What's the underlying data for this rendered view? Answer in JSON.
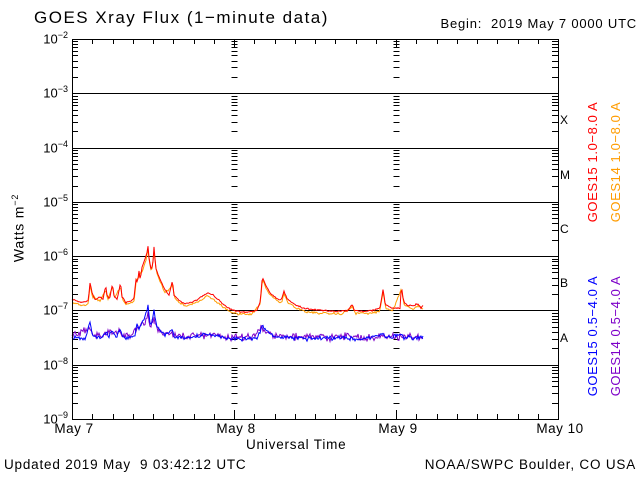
{
  "header": {
    "title": "GOES Xray Flux (1−minute data)",
    "begin_label": "Begin:  2019 May 7 0000 UTC"
  },
  "footer": {
    "updated": "Updated 2019 May  9 03:42:12 UTC",
    "source": "NOAA/SWPC Boulder, CO USA"
  },
  "colors": {
    "goes15_long": "#ff0000",
    "goes14_long": "#ff9c00",
    "goes15_short": "#0000ff",
    "goes14_short": "#7d00c8",
    "axis": "#000000",
    "background": "#ffffff"
  },
  "right_legend": [
    {
      "label": "GOES15 1.0−8.0 A",
      "color": "#ff0000",
      "column": 0,
      "row": 0
    },
    {
      "label": "GOES14 1.0−8.0 A",
      "color": "#ff9c00",
      "column": 1,
      "row": 0
    },
    {
      "label": "GOES15 0.5−4.0 A",
      "color": "#0000ff",
      "column": 0,
      "row": 1
    },
    {
      "label": "GOES14 0.5−4.0 A",
      "color": "#7d00c8",
      "column": 1,
      "row": 1
    }
  ],
  "chart_data": {
    "type": "line",
    "title": "GOES Xray Flux (1−minute data)",
    "xlabel": "Universal Time",
    "ylabel": "Watts m−2",
    "ylabel_base": "Watts m",
    "ylabel_exp": "−2",
    "x_axis": {
      "start": "2019 May 7 0000 UTC",
      "hours_span": 72,
      "tick_labels": [
        "May 7",
        "May 8",
        "May 9",
        "May 10"
      ],
      "tick_label_hours": [
        0,
        24,
        48,
        72
      ],
      "minor_tick_hours": 3,
      "dashed_day_lines_hours": [
        24,
        48
      ]
    },
    "y_axis": {
      "scale": "log",
      "min": 1e-09,
      "max": 0.01,
      "decade_exponents": [
        -2,
        -3,
        -4,
        -5,
        -6,
        -7,
        -8,
        -9
      ],
      "solid_gridline_exponents": [
        -3,
        -4,
        -5,
        -6,
        -7,
        -8
      ]
    },
    "flare_class_bands": [
      {
        "label": "X",
        "center_exponent": -3.5
      },
      {
        "label": "M",
        "center_exponent": -4.5
      },
      {
        "label": "C",
        "center_exponent": -5.5
      },
      {
        "label": "B",
        "center_exponent": -6.5
      },
      {
        "label": "A",
        "center_exponent": -7.5
      }
    ],
    "series": [
      {
        "name": "GOES14 0.5-4.0 A",
        "color": "#7d00c8",
        "noise": 0.065,
        "points": [
          [
            0,
            3.3e-08
          ],
          [
            2.7,
            4.6e-08
          ],
          [
            3.2,
            3.4e-08
          ],
          [
            5.0,
            3.8e-08
          ],
          [
            6.0,
            4e-08
          ],
          [
            7.2,
            4e-08
          ],
          [
            8.5,
            3.2e-08
          ],
          [
            9.6,
            4.8e-08
          ],
          [
            10.8,
            6e-08
          ],
          [
            11.25,
            8.5e-08
          ],
          [
            11.6,
            5e-08
          ],
          [
            12.15,
            7.5e-08
          ],
          [
            12.6,
            4.6e-08
          ],
          [
            13.5,
            3.8e-08
          ],
          [
            15.0,
            3.6e-08
          ],
          [
            17.0,
            3.3e-08
          ],
          [
            20.1,
            3.6e-08
          ],
          [
            23.0,
            3.3e-08
          ],
          [
            26.0,
            3.2e-08
          ],
          [
            28.2,
            4.6e-08
          ],
          [
            29.5,
            3.6e-08
          ],
          [
            32.0,
            3.3e-08
          ],
          [
            36.0,
            3.2e-08
          ],
          [
            40.0,
            3.3e-08
          ],
          [
            44.0,
            3.2e-08
          ],
          [
            48.0,
            3.3e-08
          ],
          [
            52.0,
            3.2e-08
          ]
        ]
      },
      {
        "name": "GOES15 0.5-4.0 A",
        "color": "#0000ff",
        "noise": 0.04,
        "points": [
          [
            0,
            3.2e-08
          ],
          [
            2.0,
            3.1e-08
          ],
          [
            2.7,
            6e-08
          ],
          [
            3.0,
            3.4e-08
          ],
          [
            4.5,
            3.2e-08
          ],
          [
            5.0,
            4.2e-08
          ],
          [
            5.4,
            3.3e-08
          ],
          [
            6.0,
            4.5e-08
          ],
          [
            6.4,
            3.2e-08
          ],
          [
            7.2,
            4.6e-08
          ],
          [
            7.6,
            3.2e-08
          ],
          [
            8.5,
            3e-08
          ],
          [
            9.4,
            3.6e-08
          ],
          [
            9.6,
            6e-08
          ],
          [
            9.9,
            4.4e-08
          ],
          [
            10.4,
            6.5e-08
          ],
          [
            10.8,
            8e-08
          ],
          [
            11.05,
            9e-08
          ],
          [
            11.25,
            1.25e-07
          ],
          [
            11.5,
            6e-08
          ],
          [
            11.8,
            5.2e-08
          ],
          [
            12.15,
            1e-07
          ],
          [
            12.5,
            5.5e-08
          ],
          [
            13.0,
            4.4e-08
          ],
          [
            13.7,
            3.6e-08
          ],
          [
            14.9,
            4.4e-08
          ],
          [
            15.2,
            3.3e-08
          ],
          [
            16.5,
            3.1e-08
          ],
          [
            19.0,
            3.3e-08
          ],
          [
            20.1,
            3.6e-08
          ],
          [
            21.5,
            3.3e-08
          ],
          [
            23.0,
            3.1e-08
          ],
          [
            25.0,
            3e-08
          ],
          [
            27.5,
            3.1e-08
          ],
          [
            28.2,
            5.2e-08
          ],
          [
            28.8,
            4.2e-08
          ],
          [
            29.5,
            3.6e-08
          ],
          [
            30.5,
            3.2e-08
          ],
          [
            33.0,
            3.1e-08
          ],
          [
            36.0,
            3e-08
          ],
          [
            40.0,
            3.1e-08
          ],
          [
            43.0,
            3e-08
          ],
          [
            46.1,
            3.6e-08
          ],
          [
            46.5,
            3.1e-08
          ],
          [
            48.8,
            3.8e-08
          ],
          [
            49.2,
            3.1e-08
          ],
          [
            51.0,
            3.2e-08
          ],
          [
            52.0,
            3.1e-08
          ]
        ]
      },
      {
        "name": "GOES14 1.0-8.0 A",
        "color": "#ff9c00",
        "noise": 0.02,
        "points": [
          [
            0,
            1.4e-07
          ],
          [
            1.5,
            1.25e-07
          ],
          [
            2.4,
            1.3e-07
          ],
          [
            2.7,
            3e-07
          ],
          [
            3.0,
            1.8e-07
          ],
          [
            4.2,
            1.5e-07
          ],
          [
            5.0,
            2.4e-07
          ],
          [
            5.3,
            1.6e-07
          ],
          [
            6.0,
            2.7e-07
          ],
          [
            6.3,
            1.7e-07
          ],
          [
            7.2,
            2.7e-07
          ],
          [
            7.5,
            1.6e-07
          ],
          [
            8.0,
            1.25e-07
          ],
          [
            9.2,
            1.5e-07
          ],
          [
            9.5,
            3.4e-07
          ],
          [
            10.0,
            4.6e-07
          ],
          [
            10.5,
            5.6e-07
          ],
          [
            11.0,
            9e-07
          ],
          [
            11.25,
            1.35e-06
          ],
          [
            11.5,
            7e-07
          ],
          [
            11.8,
            5.4e-07
          ],
          [
            12.15,
            1.2e-06
          ],
          [
            12.5,
            5.2e-07
          ],
          [
            13.0,
            3.6e-07
          ],
          [
            13.8,
            2.1e-07
          ],
          [
            14.9,
            3e-07
          ],
          [
            15.2,
            1.7e-07
          ],
          [
            16.0,
            1.35e-07
          ],
          [
            17.0,
            1.2e-07
          ],
          [
            18.6,
            1.4e-07
          ],
          [
            20.1,
            1.85e-07
          ],
          [
            21.6,
            1.4e-07
          ],
          [
            23.2,
            9.8e-08
          ],
          [
            24.5,
            8.6e-08
          ],
          [
            26.5,
            8.4e-08
          ],
          [
            27.9,
            1.3e-07
          ],
          [
            28.2,
            3.7e-07
          ],
          [
            28.9,
            2.3e-07
          ],
          [
            29.8,
            1.7e-07
          ],
          [
            31.0,
            1.35e-07
          ],
          [
            31.4,
            2e-07
          ],
          [
            32.0,
            1.4e-07
          ],
          [
            33.2,
            1.1e-07
          ],
          [
            35.0,
            9.3e-08
          ],
          [
            37.5,
            8.8e-08
          ],
          [
            40.0,
            8.6e-08
          ],
          [
            41.5,
            1.15e-07
          ],
          [
            42.0,
            9e-08
          ],
          [
            44.0,
            8.8e-08
          ],
          [
            45.6,
            9.6e-08
          ],
          [
            46.1,
            2.2e-07
          ],
          [
            46.5,
            1.1e-07
          ],
          [
            47.5,
            9.6e-08
          ],
          [
            48.8,
            2.5e-07
          ],
          [
            49.2,
            1.3e-07
          ],
          [
            50.5,
            1.05e-07
          ],
          [
            51.2,
            1.2e-07
          ],
          [
            52.0,
            1.1e-07
          ]
        ]
      },
      {
        "name": "GOES15 1.0-8.0 A",
        "color": "#ff0000",
        "noise": 0.013,
        "points": [
          [
            0,
            1.6e-07
          ],
          [
            1.5,
            1.4e-07
          ],
          [
            2.4,
            1.5e-07
          ],
          [
            2.7,
            3.6e-07
          ],
          [
            2.9,
            2.2e-07
          ],
          [
            3.4,
            1.6e-07
          ],
          [
            4.2,
            1.8e-07
          ],
          [
            4.6,
            1.6e-07
          ],
          [
            5.0,
            2.9e-07
          ],
          [
            5.2,
            1.8e-07
          ],
          [
            5.6,
            1.7e-07
          ],
          [
            6.0,
            3.2e-07
          ],
          [
            6.2,
            1.9e-07
          ],
          [
            6.7,
            1.6e-07
          ],
          [
            7.2,
            3.2e-07
          ],
          [
            7.4,
            1.8e-07
          ],
          [
            8.0,
            1.4e-07
          ],
          [
            8.8,
            1.5e-07
          ],
          [
            9.2,
            1.7e-07
          ],
          [
            9.5,
            4e-07
          ],
          [
            9.7,
            3.2e-07
          ],
          [
            9.9,
            5.5e-07
          ],
          [
            10.1,
            3.6e-07
          ],
          [
            10.4,
            6.5e-07
          ],
          [
            10.7,
            8e-07
          ],
          [
            10.9,
            9.5e-07
          ],
          [
            11.1,
            1.15e-06
          ],
          [
            11.25,
            1.6e-06
          ],
          [
            11.45,
            8e-07
          ],
          [
            11.7,
            6e-07
          ],
          [
            11.95,
            6.5e-07
          ],
          [
            12.15,
            1.45e-06
          ],
          [
            12.4,
            6e-07
          ],
          [
            12.8,
            4.5e-07
          ],
          [
            13.3,
            3.2e-07
          ],
          [
            13.8,
            2.4e-07
          ],
          [
            14.4,
            1.9e-07
          ],
          [
            14.9,
            3.6e-07
          ],
          [
            15.1,
            1.9e-07
          ],
          [
            15.8,
            1.55e-07
          ],
          [
            16.6,
            1.35e-07
          ],
          [
            17.6,
            1.4e-07
          ],
          [
            18.6,
            1.6e-07
          ],
          [
            19.5,
            1.9e-07
          ],
          [
            20.1,
            2.1e-07
          ],
          [
            20.8,
            1.95e-07
          ],
          [
            21.6,
            1.6e-07
          ],
          [
            22.4,
            1.3e-07
          ],
          [
            23.2,
            1.1e-07
          ],
          [
            24.2,
            9.8e-08
          ],
          [
            25.5,
            9.3e-08
          ],
          [
            26.8,
            9.6e-08
          ],
          [
            27.5,
            1.05e-07
          ],
          [
            27.9,
            1.5e-07
          ],
          [
            28.2,
            4.2e-07
          ],
          [
            28.5,
            3.3e-07
          ],
          [
            28.9,
            2.6e-07
          ],
          [
            29.5,
            2e-07
          ],
          [
            30.2,
            1.7e-07
          ],
          [
            31.0,
            1.55e-07
          ],
          [
            31.4,
            2.3e-07
          ],
          [
            31.8,
            1.7e-07
          ],
          [
            32.4,
            1.45e-07
          ],
          [
            33.2,
            1.25e-07
          ],
          [
            34.3,
            1.1e-07
          ],
          [
            35.5,
            1.05e-07
          ],
          [
            37.0,
            1e-07
          ],
          [
            39.0,
            9.6e-08
          ],
          [
            40.8,
            9.8e-08
          ],
          [
            41.5,
            1.3e-07
          ],
          [
            41.8,
            1e-07
          ],
          [
            43.0,
            9.6e-08
          ],
          [
            44.5,
            1e-07
          ],
          [
            45.6,
            1.1e-07
          ],
          [
            46.1,
            2.5e-07
          ],
          [
            46.4,
            1.3e-07
          ],
          [
            47.3,
            1.1e-07
          ],
          [
            48.6,
            1.1e-07
          ],
          [
            48.8,
            2.9e-07
          ],
          [
            49.1,
            1.5e-07
          ],
          [
            49.6,
            1.25e-07
          ],
          [
            50.5,
            1.2e-07
          ],
          [
            51.2,
            1.35e-07
          ],
          [
            51.7,
            1.1e-07
          ],
          [
            52.0,
            1.25e-07
          ]
        ]
      }
    ]
  }
}
